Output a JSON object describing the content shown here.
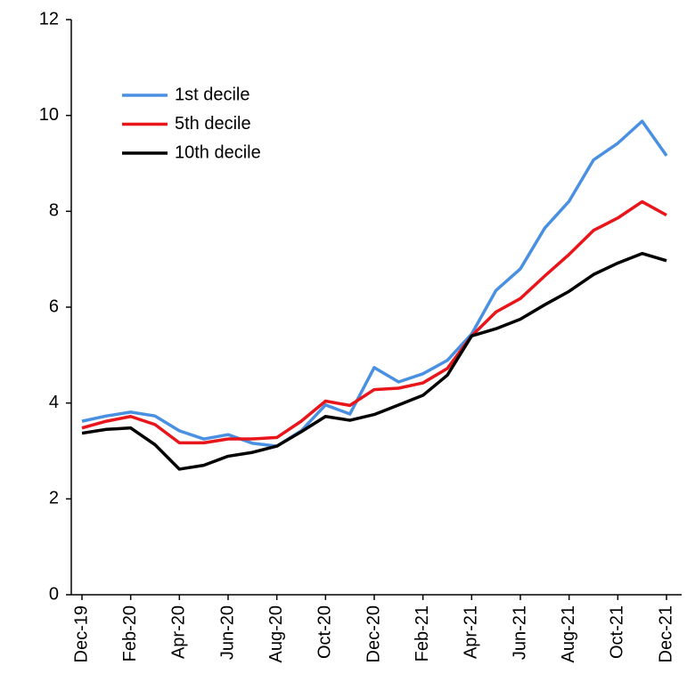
{
  "chart_data": {
    "type": "line",
    "categories": [
      "Dec-19",
      null,
      "Feb-20",
      null,
      "Apr-20",
      null,
      "Jun-20",
      null,
      "Aug-20",
      null,
      "Oct-20",
      null,
      "Dec-20",
      null,
      "Feb-21",
      null,
      "Apr-21",
      null,
      "Jun-21",
      null,
      "Aug-21",
      null,
      "Oct-21",
      null,
      "Dec-21"
    ],
    "series": [
      {
        "name": "1st decile",
        "color": "#4a90e2",
        "values": [
          3.62,
          3.73,
          3.81,
          3.73,
          3.42,
          3.25,
          3.34,
          3.16,
          3.1,
          3.42,
          3.96,
          3.77,
          4.74,
          4.44,
          4.61,
          4.89,
          5.44,
          6.35,
          6.8,
          7.65,
          8.21,
          9.07,
          9.42,
          9.88,
          9.16
        ]
      },
      {
        "name": "5th decile",
        "color": "#e8151b",
        "values": [
          3.48,
          3.62,
          3.72,
          3.55,
          3.17,
          3.17,
          3.25,
          3.25,
          3.28,
          3.62,
          4.04,
          3.95,
          4.28,
          4.31,
          4.42,
          4.72,
          5.4,
          5.9,
          6.18,
          6.65,
          7.1,
          7.6,
          7.86,
          8.2,
          7.92
        ]
      },
      {
        "name": "10th decile",
        "color": "#000000",
        "values": [
          3.37,
          3.45,
          3.48,
          3.13,
          2.62,
          2.7,
          2.89,
          2.97,
          3.1,
          3.4,
          3.72,
          3.64,
          3.76,
          3.96,
          4.16,
          4.58,
          5.4,
          5.55,
          5.75,
          6.05,
          6.33,
          6.68,
          6.92,
          7.12,
          6.97
        ]
      }
    ],
    "ylim": [
      0,
      12
    ],
    "yticks": [
      0,
      2,
      4,
      6,
      8,
      10,
      12
    ],
    "grid": false,
    "legend": "upper-left"
  }
}
